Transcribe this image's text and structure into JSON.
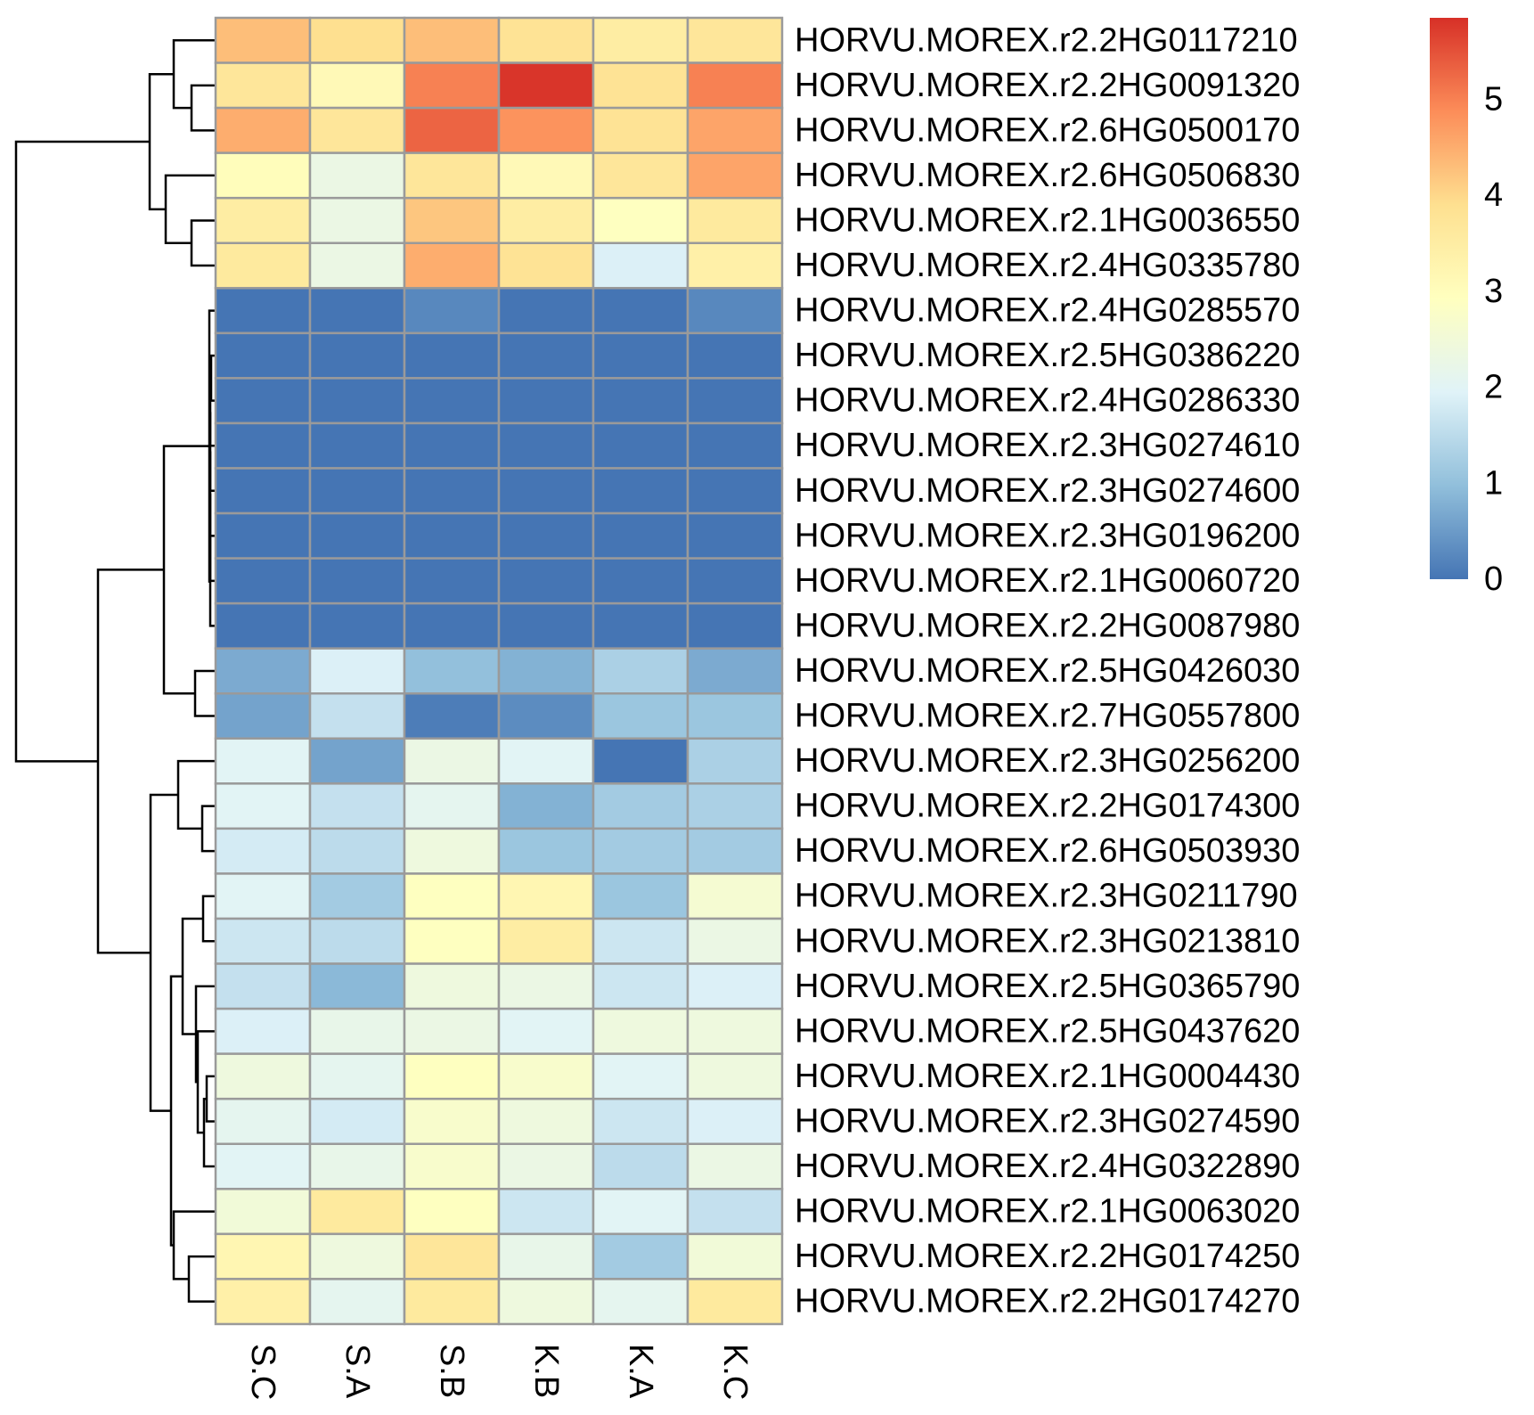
{
  "chart_data": {
    "type": "heatmap",
    "title": "",
    "xlabel": "",
    "ylabel": "",
    "columns": [
      "S.C",
      "S.A",
      "S.B",
      "K.B",
      "K.A",
      "K.C"
    ],
    "rows": [
      "HORVU.MOREX.r2.2HG0117210",
      "HORVU.MOREX.r2.2HG0091320",
      "HORVU.MOREX.r2.6HG0500170",
      "HORVU.MOREX.r2.6HG0506830",
      "HORVU.MOREX.r2.1HG0036550",
      "HORVU.MOREX.r2.4HG0335780",
      "HORVU.MOREX.r2.4HG0285570",
      "HORVU.MOREX.r2.5HG0386220",
      "HORVU.MOREX.r2.4HG0286330",
      "HORVU.MOREX.r2.3HG0274610",
      "HORVU.MOREX.r2.3HG0274600",
      "HORVU.MOREX.r2.3HG0196200",
      "HORVU.MOREX.r2.1HG0060720",
      "HORVU.MOREX.r2.2HG0087980",
      "HORVU.MOREX.r2.5HG0426030",
      "HORVU.MOREX.r2.7HG0557800",
      "HORVU.MOREX.r2.3HG0256200",
      "HORVU.MOREX.r2.2HG0174300",
      "HORVU.MOREX.r2.6HG0503930",
      "HORVU.MOREX.r2.3HG0211790",
      "HORVU.MOREX.r2.3HG0213810",
      "HORVU.MOREX.r2.5HG0365790",
      "HORVU.MOREX.r2.5HG0437620",
      "HORVU.MOREX.r2.1HG0004430",
      "HORVU.MOREX.r2.3HG0274590",
      "HORVU.MOREX.r2.4HG0322890",
      "HORVU.MOREX.r2.1HG0063020",
      "HORVU.MOREX.r2.2HG0174250",
      "HORVU.MOREX.r2.2HG0174270"
    ],
    "values": [
      [
        4.3,
        3.9,
        4.3,
        3.8,
        3.5,
        3.7
      ],
      [
        3.7,
        3.1,
        5.0,
        5.8,
        3.8,
        5.0
      ],
      [
        4.5,
        3.7,
        5.3,
        4.8,
        3.8,
        4.6
      ],
      [
        3.0,
        2.3,
        3.7,
        3.1,
        3.7,
        4.6
      ],
      [
        3.5,
        2.3,
        4.2,
        3.5,
        2.9,
        3.6
      ],
      [
        3.6,
        2.3,
        4.5,
        3.8,
        1.9,
        3.4
      ],
      [
        0.0,
        0.0,
        0.25,
        0.0,
        0.0,
        0.25
      ],
      [
        0.0,
        0.0,
        0.0,
        0.0,
        0.0,
        0.0
      ],
      [
        0.0,
        0.0,
        0.0,
        0.0,
        0.0,
        0.0
      ],
      [
        0.0,
        0.0,
        0.0,
        0.0,
        0.0,
        0.0
      ],
      [
        0.0,
        0.0,
        0.0,
        0.0,
        0.0,
        0.0
      ],
      [
        0.0,
        0.0,
        0.0,
        0.0,
        0.0,
        0.0
      ],
      [
        0.0,
        0.0,
        0.0,
        0.0,
        0.0,
        0.0
      ],
      [
        0.0,
        0.0,
        0.0,
        0.0,
        0.0,
        0.0
      ],
      [
        0.7,
        1.9,
        1.0,
        0.8,
        1.3,
        0.7
      ],
      [
        0.6,
        1.6,
        0.1,
        0.3,
        1.1,
        1.1
      ],
      [
        2.0,
        0.6,
        2.3,
        2.0,
        0.0,
        1.3
      ],
      [
        2.0,
        1.6,
        2.1,
        0.8,
        1.2,
        1.3
      ],
      [
        1.8,
        1.5,
        2.4,
        1.1,
        1.2,
        1.2
      ],
      [
        2.0,
        1.2,
        2.9,
        3.2,
        1.1,
        2.6
      ],
      [
        1.7,
        1.5,
        2.9,
        3.5,
        1.7,
        2.3
      ],
      [
        1.6,
        0.9,
        2.4,
        2.3,
        1.7,
        1.9
      ],
      [
        1.9,
        2.2,
        2.3,
        2.0,
        2.4,
        2.4
      ],
      [
        2.4,
        2.1,
        2.9,
        2.7,
        2.0,
        2.4
      ],
      [
        2.1,
        1.8,
        2.7,
        2.4,
        1.7,
        1.9
      ],
      [
        2.0,
        2.2,
        2.7,
        2.3,
        1.5,
        2.3
      ],
      [
        2.5,
        3.6,
        2.9,
        1.7,
        2.0,
        1.6
      ],
      [
        3.2,
        2.4,
        3.7,
        2.2,
        1.2,
        2.5
      ],
      [
        3.4,
        2.1,
        3.6,
        2.4,
        2.1,
        3.6
      ]
    ],
    "colorbar": {
      "min": 0,
      "max": 5.85,
      "ticks": [
        "0",
        "1",
        "2",
        "3",
        "4",
        "5"
      ],
      "colors": [
        "#4575B4",
        "#91BFDB",
        "#E0F3F8",
        "#FFFFBF",
        "#FEE090",
        "#FC8D59",
        "#D73027"
      ]
    },
    "row_dendrogram": "hierarchical clustering tree on rows",
    "cell_border_color": "#9A9A9A"
  }
}
